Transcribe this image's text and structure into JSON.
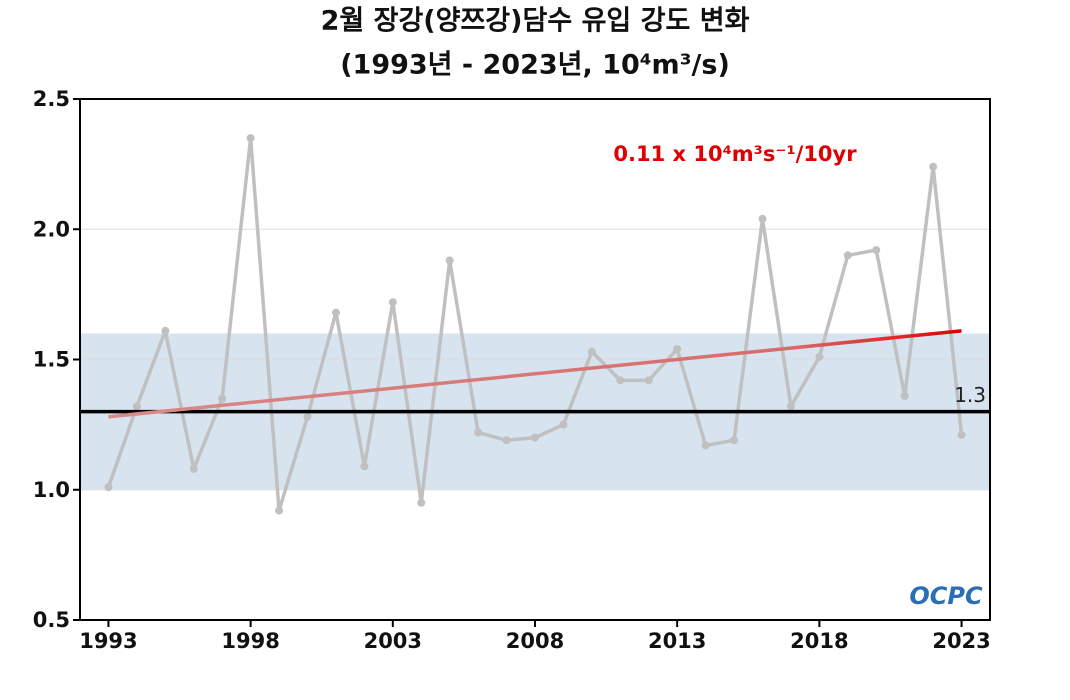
{
  "chart_data": {
    "type": "line",
    "title": "2월 장강(양쯔강)담수 유입 강도 변화",
    "subtitle": "(1993년 - 2023년, 10⁴m³/s)",
    "annotation": "0.11 x 10⁴m³s⁻¹/10yr",
    "logo": "OCPC",
    "x": [
      1993,
      1994,
      1995,
      1996,
      1997,
      1998,
      1999,
      2000,
      2001,
      2002,
      2003,
      2004,
      2005,
      2006,
      2007,
      2008,
      2009,
      2010,
      2011,
      2012,
      2013,
      2014,
      2015,
      2016,
      2017,
      2018,
      2019,
      2020,
      2021,
      2022,
      2023
    ],
    "series": [
      {
        "color": "#c0c0c0",
        "values": [
          1.01,
          1.32,
          1.61,
          1.08,
          1.35,
          2.35,
          0.92,
          1.28,
          1.68,
          1.09,
          1.72,
          0.95,
          1.88,
          1.22,
          1.19,
          1.2,
          1.25,
          1.53,
          1.42,
          1.42,
          1.54,
          1.17,
          1.19,
          2.04,
          1.32,
          1.51,
          1.9,
          1.92,
          1.36,
          2.24,
          1.21
        ]
      },
      {
        "color": "#e00000",
        "x": [
          1993,
          2023
        ],
        "values": [
          1.28,
          1.61
        ]
      }
    ],
    "reference": {
      "value": 1.3,
      "color": "#000000"
    },
    "band": {
      "range": [
        1.0,
        1.6
      ],
      "color": "#d7e3ef"
    },
    "xlim": [
      1992,
      2024
    ],
    "xticks": [
      1993,
      1998,
      2003,
      2008,
      2013,
      2018,
      2023
    ],
    "ylim": [
      0.5,
      2.5
    ],
    "yticks": [
      0.5,
      {
        "value": 1,
        "label": "1.0"
      },
      1.5,
      {
        "value": 2,
        "label": "2.0"
      },
      2.5
    ],
    "grid": true
  }
}
